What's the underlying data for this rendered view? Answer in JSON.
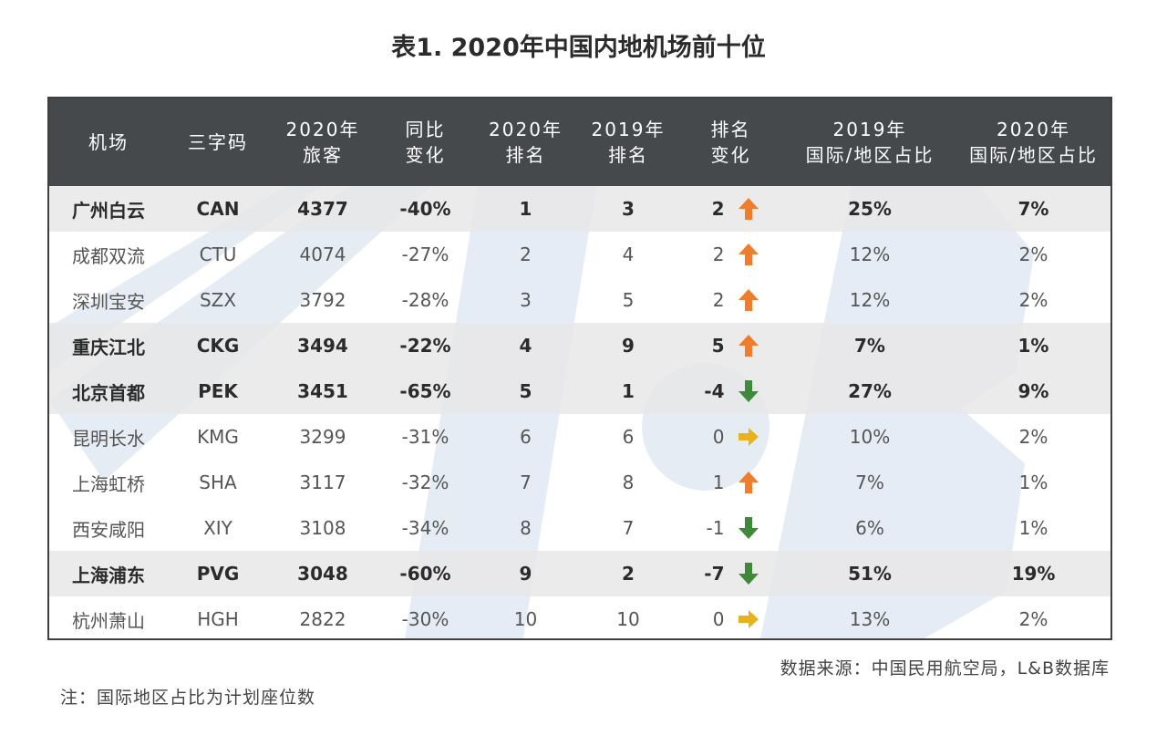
{
  "title": "表1. 2020年中国内地机场前十位",
  "source": "数据来源：中国民用航空局，L&B数据库",
  "note": "注：国际地区占比为计划座位数",
  "colors": {
    "header_bg": "#46494c",
    "highlight_row_bg": "#e8e8e8",
    "arrow_up": "#ee7d2e",
    "arrow_down": "#3f8a3a",
    "arrow_flat": "#e8b21e"
  },
  "chart_data": {
    "type": "table",
    "title": "表1. 2020年中国内地机场前十位",
    "columns": [
      [
        "机场"
      ],
      [
        "三字码"
      ],
      [
        "2020年",
        "旅客"
      ],
      [
        "同比",
        "变化"
      ],
      [
        "2020年",
        "排名"
      ],
      [
        "2019年",
        "排名"
      ],
      [
        "排名",
        "变化"
      ],
      [
        "2019年",
        "国际/地区占比"
      ],
      [
        "2020年",
        "国际/地区占比"
      ]
    ],
    "rows": [
      {
        "airport": "广州白云",
        "code": "CAN",
        "pax": "4377",
        "yoy": "-40%",
        "rank2020": "1",
        "rank2019": "3",
        "rank_change": "2",
        "trend": "up",
        "intl2019": "25%",
        "intl2020": "7%",
        "highlight": true
      },
      {
        "airport": "成都双流",
        "code": "CTU",
        "pax": "4074",
        "yoy": "-27%",
        "rank2020": "2",
        "rank2019": "4",
        "rank_change": "2",
        "trend": "up",
        "intl2019": "12%",
        "intl2020": "2%",
        "highlight": false
      },
      {
        "airport": "深圳宝安",
        "code": "SZX",
        "pax": "3792",
        "yoy": "-28%",
        "rank2020": "3",
        "rank2019": "5",
        "rank_change": "2",
        "trend": "up",
        "intl2019": "12%",
        "intl2020": "2%",
        "highlight": false
      },
      {
        "airport": "重庆江北",
        "code": "CKG",
        "pax": "3494",
        "yoy": "-22%",
        "rank2020": "4",
        "rank2019": "9",
        "rank_change": "5",
        "trend": "up",
        "intl2019": "7%",
        "intl2020": "1%",
        "highlight": true
      },
      {
        "airport": "北京首都",
        "code": "PEK",
        "pax": "3451",
        "yoy": "-65%",
        "rank2020": "5",
        "rank2019": "1",
        "rank_change": "-4",
        "trend": "down",
        "intl2019": "27%",
        "intl2020": "9%",
        "highlight": true
      },
      {
        "airport": "昆明长水",
        "code": "KMG",
        "pax": "3299",
        "yoy": "-31%",
        "rank2020": "6",
        "rank2019": "6",
        "rank_change": "0",
        "trend": "flat",
        "intl2019": "10%",
        "intl2020": "2%",
        "highlight": false
      },
      {
        "airport": "上海虹桥",
        "code": "SHA",
        "pax": "3117",
        "yoy": "-32%",
        "rank2020": "7",
        "rank2019": "8",
        "rank_change": "1",
        "trend": "up",
        "intl2019": "7%",
        "intl2020": "1%",
        "highlight": false
      },
      {
        "airport": "西安咸阳",
        "code": "XIY",
        "pax": "3108",
        "yoy": "-34%",
        "rank2020": "8",
        "rank2019": "7",
        "rank_change": "-1",
        "trend": "down",
        "intl2019": "6%",
        "intl2020": "1%",
        "highlight": false
      },
      {
        "airport": "上海浦东",
        "code": "PVG",
        "pax": "3048",
        "yoy": "-60%",
        "rank2020": "9",
        "rank2019": "2",
        "rank_change": "-7",
        "trend": "down",
        "intl2019": "51%",
        "intl2020": "19%",
        "highlight": true
      },
      {
        "airport": "杭州萧山",
        "code": "HGH",
        "pax": "2822",
        "yoy": "-30%",
        "rank2020": "10",
        "rank2019": "10",
        "rank_change": "0",
        "trend": "flat",
        "intl2019": "13%",
        "intl2020": "2%",
        "highlight": false
      }
    ]
  }
}
